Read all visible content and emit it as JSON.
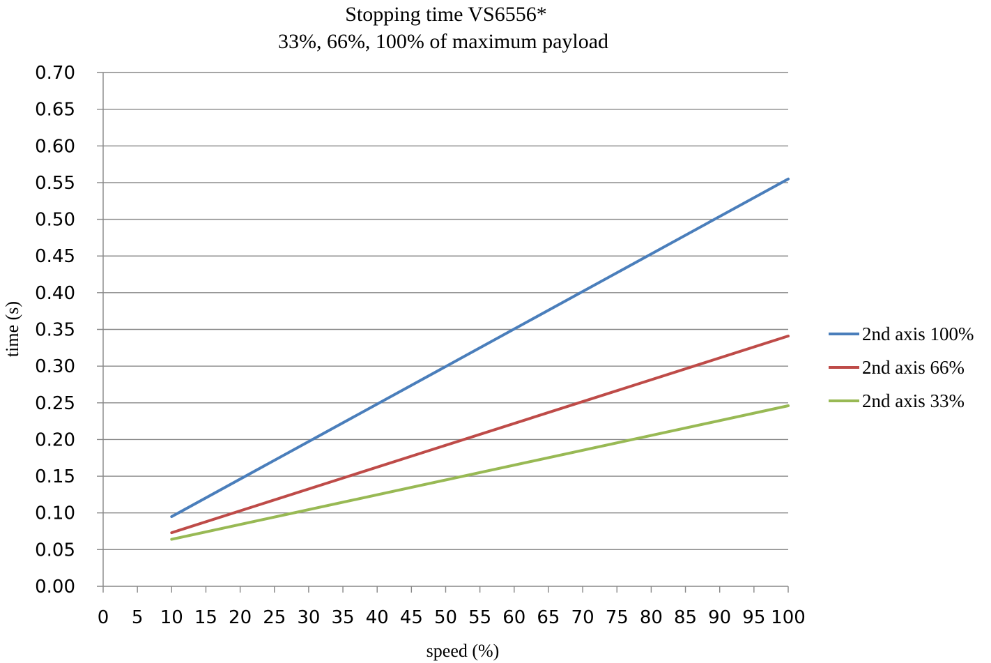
{
  "chart_data": {
    "type": "line",
    "title": "Stopping time VS6556*",
    "subtitle": "33%, 66%, 100% of maximum payload",
    "xlabel": "speed (%)",
    "ylabel": "time (s)",
    "xlim": [
      0,
      100
    ],
    "ylim": [
      0,
      0.7
    ],
    "x_ticks": [
      "0",
      "5",
      "10",
      "15",
      "20",
      "25",
      "30",
      "35",
      "40",
      "45",
      "50",
      "55",
      "60",
      "65",
      "70",
      "75",
      "80",
      "85",
      "90",
      "95",
      "100"
    ],
    "y_ticks": [
      "0.00",
      "0.05",
      "0.10",
      "0.15",
      "0.20",
      "0.25",
      "0.30",
      "0.35",
      "0.40",
      "0.45",
      "0.50",
      "0.55",
      "0.60",
      "0.65",
      "0.70"
    ],
    "grid": "horizontal",
    "legend_position": "right",
    "series": [
      {
        "name": "2nd axis 100%",
        "color": "#4a7ebb",
        "x": [
          10,
          100
        ],
        "y": [
          0.095,
          0.555
        ]
      },
      {
        "name": "2nd axis 66%",
        "color": "#be4b48",
        "x": [
          10,
          100
        ],
        "y": [
          0.073,
          0.341
        ]
      },
      {
        "name": "2nd axis 33%",
        "color": "#98b954",
        "x": [
          10,
          100
        ],
        "y": [
          0.064,
          0.246
        ]
      }
    ]
  }
}
